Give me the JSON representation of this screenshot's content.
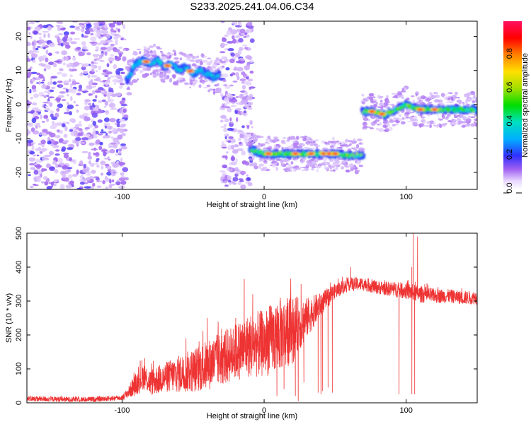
{
  "page_title": "S233.2025.241.04.06.C34",
  "chart_data": [
    {
      "type": "heatmap",
      "title": "S233.2025.241.04.06.C34",
      "xlabel": "Height of straight line (km)",
      "ylabel": "Frequency (Hz)",
      "xlim": [
        -167,
        150
      ],
      "ylim": [
        -25,
        24.5
      ],
      "xticks": [
        -100,
        0,
        100
      ],
      "yticks": [
        -20,
        -10,
        0,
        10,
        20
      ],
      "colorbar": {
        "label": "Normalized spectral amplitude",
        "range": [
          0,
          1
        ],
        "ticks": [
          0.0,
          0.2,
          0.4,
          0.6,
          0.8
        ],
        "tick_labels": [
          "0.0",
          "0.2",
          "0.4",
          "0.6",
          "0.8"
        ],
        "colormap": "rainbow"
      },
      "noise_regions": [
        {
          "x": [
            -167,
            -97
          ],
          "y": [
            -25,
            24.5
          ],
          "level": 0.12
        },
        {
          "x": [
            -30,
            -8
          ],
          "y": [
            -25,
            24.5
          ],
          "level": 0.12
        }
      ],
      "tracks": [
        {
          "x": [
            -97,
            -95,
            -92,
            -90,
            -85,
            -80,
            -75,
            -70,
            -65,
            -60,
            -55,
            -50,
            -45,
            -40,
            -35,
            -31
          ],
          "y": [
            7,
            8,
            11,
            12,
            13,
            12,
            13,
            11,
            12,
            10,
            11,
            9,
            10,
            9,
            8,
            9
          ],
          "amplitude": 0.35,
          "peak_x": [
            -83,
            -68,
            -52
          ]
        },
        {
          "x": [
            -10,
            -5,
            0,
            5,
            10,
            20,
            30,
            40,
            50,
            60,
            70
          ],
          "y": [
            -13,
            -14,
            -14.5,
            -14.5,
            -14.5,
            -14.5,
            -14.5,
            -14.5,
            -14.5,
            -15,
            -15
          ],
          "amplitude": 0.55,
          "peak_x": [
            3,
            22,
            33,
            42,
            46,
            50
          ]
        },
        {
          "x": [
            69,
            75,
            80,
            85,
            90,
            95,
            100,
            105,
            110,
            120,
            130,
            140,
            150
          ],
          "y": [
            -2,
            -2,
            -2.5,
            -3,
            -2,
            -1,
            0,
            -1,
            -1.5,
            -1.5,
            -1.5,
            -1.5,
            -1.5
          ],
          "amplitude": 0.55,
          "peak_x": [
            76,
            83,
            110,
            120
          ]
        }
      ]
    },
    {
      "type": "line",
      "xlabel": "Height of straight line (km)",
      "ylabel": "SNR (10 * v/v)",
      "xlim": [
        -167,
        150
      ],
      "ylim": [
        0,
        500
      ],
      "xticks": [
        -100,
        0,
        100
      ],
      "yticks": [
        0,
        100,
        200,
        300,
        400,
        500
      ],
      "series": [
        {
          "name": "SNR",
          "color": "#ee3333",
          "envelope_x": [
            -167,
            -140,
            -120,
            -100,
            -97,
            -90,
            -85,
            -80,
            -70,
            -60,
            -50,
            -40,
            -30,
            -20,
            -10,
            0,
            10,
            20,
            30,
            40,
            50,
            60,
            70,
            80,
            90,
            100,
            110,
            120,
            130,
            140,
            150
          ],
          "envelope_y": [
            12,
            10,
            10,
            15,
            25,
            55,
            80,
            60,
            75,
            85,
            95,
            110,
            130,
            150,
            170,
            175,
            200,
            215,
            250,
            290,
            330,
            350,
            350,
            340,
            335,
            330,
            320,
            315,
            315,
            310,
            310
          ],
          "noise": [
            8,
            8,
            8,
            8,
            12,
            35,
            40,
            40,
            45,
            55,
            65,
            75,
            80,
            85,
            95,
            100,
            110,
            100,
            60,
            35,
            22,
            20,
            20,
            20,
            22,
            25,
            25,
            22,
            20,
            20,
            20
          ],
          "spikes": [
            {
              "x": -98,
              "y": 30
            },
            {
              "x": -93,
              "y": 70
            },
            {
              "x": -86,
              "y": 125
            },
            {
              "x": -55,
              "y": 190
            },
            {
              "x": -46,
              "y": 165
            },
            {
              "x": -40,
              "y": 250
            },
            {
              "x": -33,
              "y": 200
            },
            {
              "x": -20,
              "y": 250
            },
            {
              "x": -14,
              "y": 365
            },
            {
              "x": -8,
              "y": 320
            },
            {
              "x": -4,
              "y": 225
            },
            {
              "x": 3,
              "y": 240
            },
            {
              "x": 8,
              "y": 245
            },
            {
              "x": 16,
              "y": 285
            },
            {
              "x": 26,
              "y": 350
            },
            {
              "x": 61,
              "y": 400
            },
            {
              "x": 104,
              "y": 400
            },
            {
              "x": 105,
              "y": 500
            },
            {
              "x": 108,
              "y": 490
            }
          ],
          "drops": [
            {
              "x": 9,
              "y": 20
            },
            {
              "x": 14,
              "y": 40
            },
            {
              "x": 22,
              "y": 20
            },
            {
              "x": 24,
              "y": 5
            },
            {
              "x": 28,
              "y": 60
            },
            {
              "x": 38,
              "y": 30
            },
            {
              "x": 40,
              "y": 25
            },
            {
              "x": 41,
              "y": 35
            },
            {
              "x": 45,
              "y": 45
            },
            {
              "x": 48,
              "y": 30
            },
            {
              "x": 95,
              "y": 25
            },
            {
              "x": 104,
              "y": 25
            },
            {
              "x": 106,
              "y": 25
            }
          ]
        }
      ]
    }
  ]
}
